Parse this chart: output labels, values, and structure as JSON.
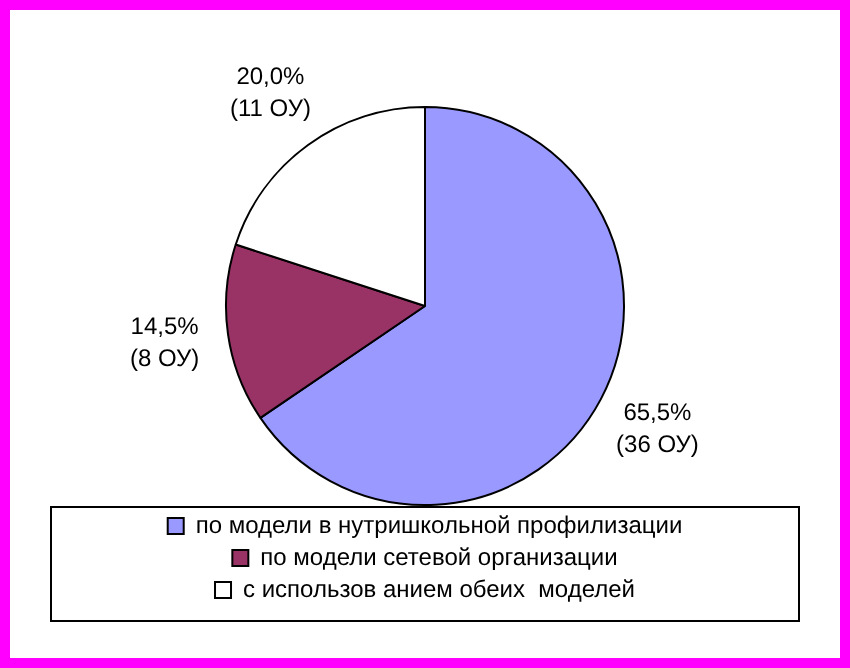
{
  "chart_data": {
    "type": "pie",
    "categories": [
      "по модели в нутришкольной профилизации",
      "по модели сетевой организации",
      "с использов анием обеих  моделей"
    ],
    "values": [
      65.5,
      14.5,
      20.0
    ],
    "colors": [
      "#9999ff",
      "#993366",
      "#ffffff"
    ],
    "value_labels": [
      "65,5%\n(36 ОУ)",
      "14,5%\n(8 ОУ)",
      "20,0%\n(11 ОУ)"
    ],
    "legend": "bottom"
  }
}
